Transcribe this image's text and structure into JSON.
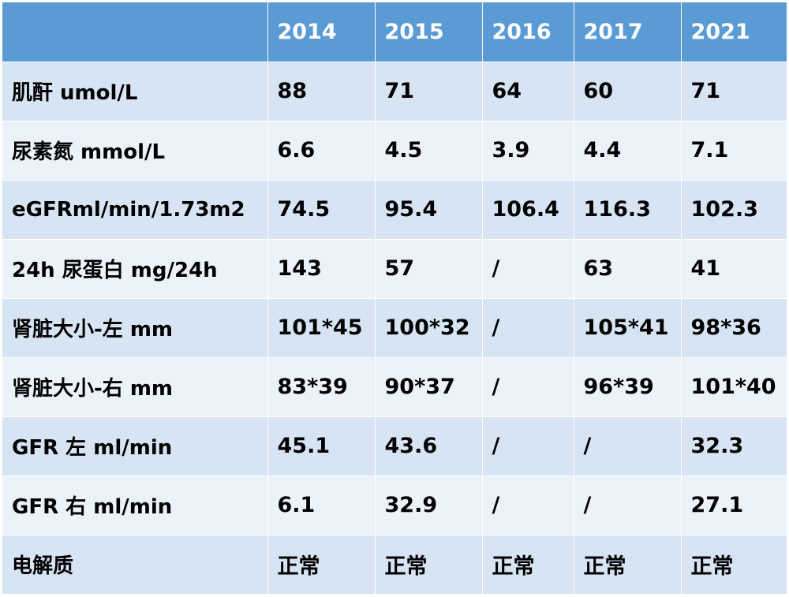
{
  "table": {
    "header": [
      "",
      "2014",
      "2015",
      "2016",
      "2017",
      "2021"
    ],
    "rows": [
      [
        "肌酐 umol/L",
        "88",
        "71",
        "64",
        "60",
        "71"
      ],
      [
        "尿素氮 mmol/L",
        "6.6",
        "4.5",
        "3.9",
        "4.4",
        "7.1"
      ],
      [
        "eGFRml/min/1.73m2",
        "74.5",
        "95.4",
        "106.4",
        "116.3",
        "102.3"
      ],
      [
        "24h 尿蛋白  mg/24h",
        "143",
        "57",
        "/",
        "63",
        "41"
      ],
      [
        "肾脏大小-左 mm",
        "101*45",
        "100*32",
        "/",
        "105*41",
        "98*36"
      ],
      [
        "肾脏大小-右 mm",
        "83*39",
        "90*37",
        "/",
        "96*39",
        "101*40"
      ],
      [
        "GFR 左 ml/min",
        "45.1",
        "43.6",
        "/",
        "/",
        "32.3"
      ],
      [
        "GFR 右 ml/min",
        "6.1",
        "32.9",
        "/",
        "/",
        "27.1"
      ],
      [
        "电解质",
        "正常",
        "正常",
        "正常",
        "正常",
        "正常"
      ]
    ]
  },
  "colors": {
    "header_bg": "#5b9bd5",
    "header_text": "#ffffff",
    "row_odd_bg": "#d6e4f3",
    "row_even_bg": "#ecf2f9"
  }
}
